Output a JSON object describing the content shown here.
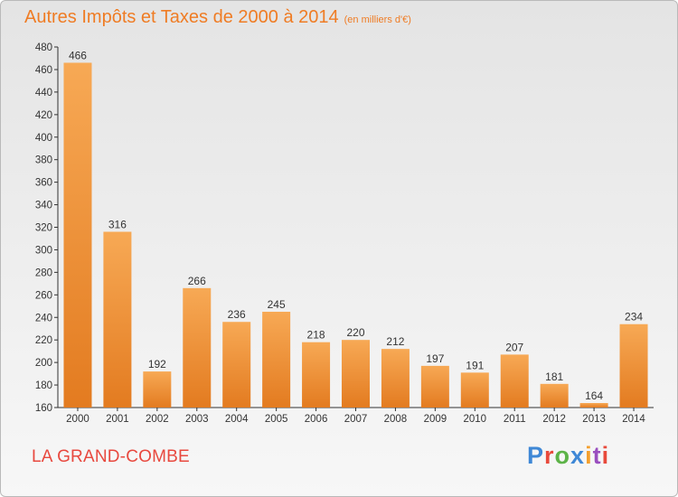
{
  "header": {
    "title": "Autres Impôts et Taxes de 2000 à 2014",
    "unit": "(en milliers d'€)"
  },
  "footer": {
    "commune": "LA GRAND-COMBE",
    "logo_text": "Proxiti"
  },
  "colors": {
    "title": "#ef7c24",
    "bar_light": "#f7a955",
    "bar_dark": "#e37b20",
    "commune": "#e8493f"
  },
  "chart_data": {
    "type": "bar",
    "title": "Autres Impôts et Taxes de 2000 à 2014",
    "subtitle": "(en milliers d'€)",
    "categories": [
      "2000",
      "2001",
      "2002",
      "2003",
      "2004",
      "2005",
      "2006",
      "2007",
      "2008",
      "2009",
      "2010",
      "2011",
      "2012",
      "2013",
      "2014"
    ],
    "values": [
      466,
      316,
      192,
      266,
      236,
      245,
      218,
      220,
      212,
      197,
      191,
      207,
      181,
      164,
      234
    ],
    "ylim": [
      160,
      480
    ],
    "yticks": [
      160,
      180,
      200,
      220,
      240,
      260,
      280,
      300,
      320,
      340,
      360,
      380,
      400,
      420,
      440,
      460,
      480
    ],
    "grid": false,
    "legend": "none"
  }
}
